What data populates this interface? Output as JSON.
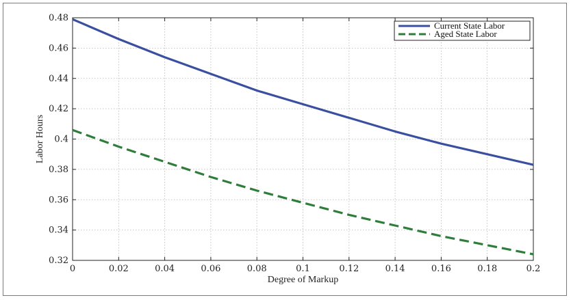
{
  "chart_data": {
    "type": "line",
    "title": "",
    "xlabel": "Degree of Markup",
    "ylabel": "Labor Hours",
    "xlim": [
      0,
      0.2
    ],
    "ylim": [
      0.32,
      0.48
    ],
    "xticks": [
      "0",
      "0.02",
      "0.04",
      "0.06",
      "0.08",
      "0.1",
      "0.12",
      "0.14",
      "0.16",
      "0.18",
      "0.2"
    ],
    "yticks": [
      "0.32",
      "0.34",
      "0.36",
      "0.38",
      "0.4",
      "0.42",
      "0.44",
      "0.46",
      "0.48"
    ],
    "grid": true,
    "legend_position": "top-right",
    "x": [
      0,
      0.02,
      0.04,
      0.06,
      0.08,
      0.1,
      0.12,
      0.14,
      0.16,
      0.18,
      0.2
    ],
    "series": [
      {
        "name": "Current State Labor",
        "style": "solid",
        "color": "#3a4fa0",
        "values": [
          0.479,
          0.466,
          0.454,
          0.443,
          0.432,
          0.423,
          0.414,
          0.405,
          0.397,
          0.39,
          0.383
        ]
      },
      {
        "name": "Aged State Labor",
        "style": "dashed",
        "color": "#2e7d3a",
        "values": [
          0.406,
          0.395,
          0.385,
          0.375,
          0.366,
          0.358,
          0.35,
          0.343,
          0.336,
          0.33,
          0.324
        ]
      }
    ]
  }
}
